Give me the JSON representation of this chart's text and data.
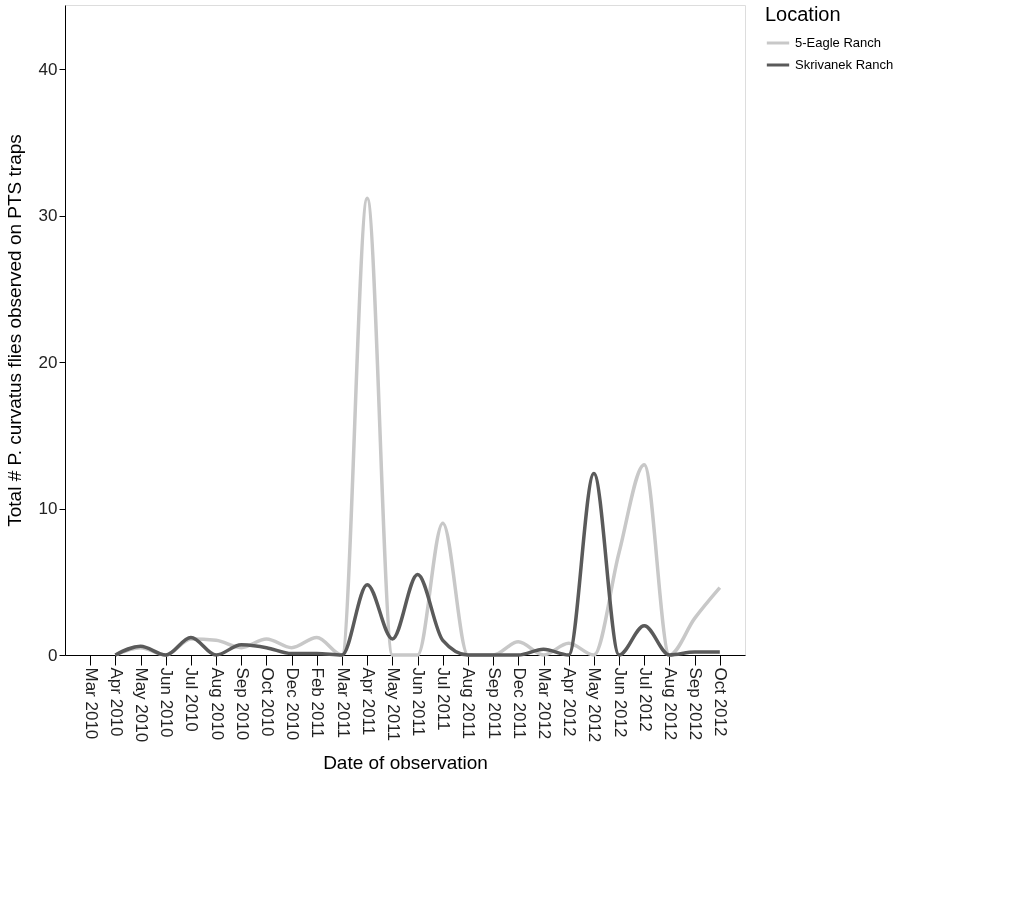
{
  "chart_data": {
    "type": "line",
    "xlabel": "Date of observation",
    "ylabel": "Total # P. curvatus  flies observed on PTS traps",
    "legend_title": "Location",
    "categories": [
      "Mar 2010",
      "Apr 2010",
      "May 2010",
      "Jun 2010",
      "Jul 2010",
      "Aug 2010",
      "Sep 2010",
      "Oct 2010",
      "Dec 2010",
      "Feb 2011",
      "Mar 2011",
      "Apr 2011",
      "May 2011",
      "Jun 2011",
      "Jul 2011",
      "Aug 2011",
      "Sep 2011",
      "Dec 2011",
      "Mar 2012",
      "Apr 2012",
      "May 2012",
      "Jun 2012",
      "Jul 2012",
      "Aug 2012",
      "Sep 2012",
      "Oct 2012"
    ],
    "series": [
      {
        "name": "5-Eagle Ranch",
        "color": "#c8c8c8",
        "values": [
          null,
          0,
          0.5,
          0,
          1.1,
          1.0,
          0.5,
          1.1,
          0.5,
          1.2,
          0,
          31.2,
          0,
          0,
          9,
          0,
          0,
          0.9,
          0,
          0.8,
          0,
          7,
          13,
          0,
          2.5,
          4.6
        ]
      },
      {
        "name": "Skrivanek Ranch",
        "color": "#5a5a5a",
        "values": [
          null,
          0,
          0.6,
          0,
          1.2,
          0,
          0.7,
          0.5,
          0.1,
          0.1,
          0,
          4.8,
          1.1,
          5.5,
          1,
          0,
          0,
          0,
          0.4,
          0,
          12.4,
          0,
          2.0,
          0,
          0.2,
          0.2
        ]
      }
    ],
    "ylim": [
      0,
      44.4
    ],
    "yticks": [
      0,
      10,
      20,
      30,
      40
    ],
    "grid": false,
    "legend": "top right",
    "line_style": "solid",
    "marker": "none"
  }
}
